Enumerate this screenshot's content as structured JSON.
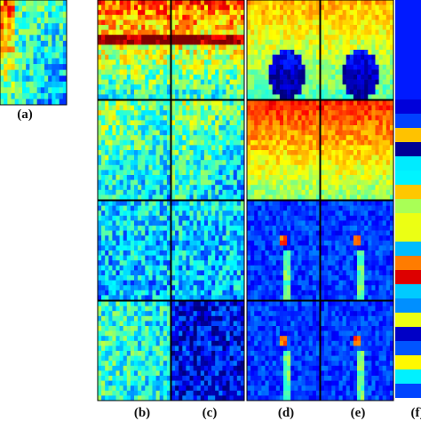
{
  "panels": {
    "a": "(a)",
    "b": "(b)",
    "c": "(c)",
    "d": "(d)",
    "e": "(e)",
    "f": "(f)"
  }
}
